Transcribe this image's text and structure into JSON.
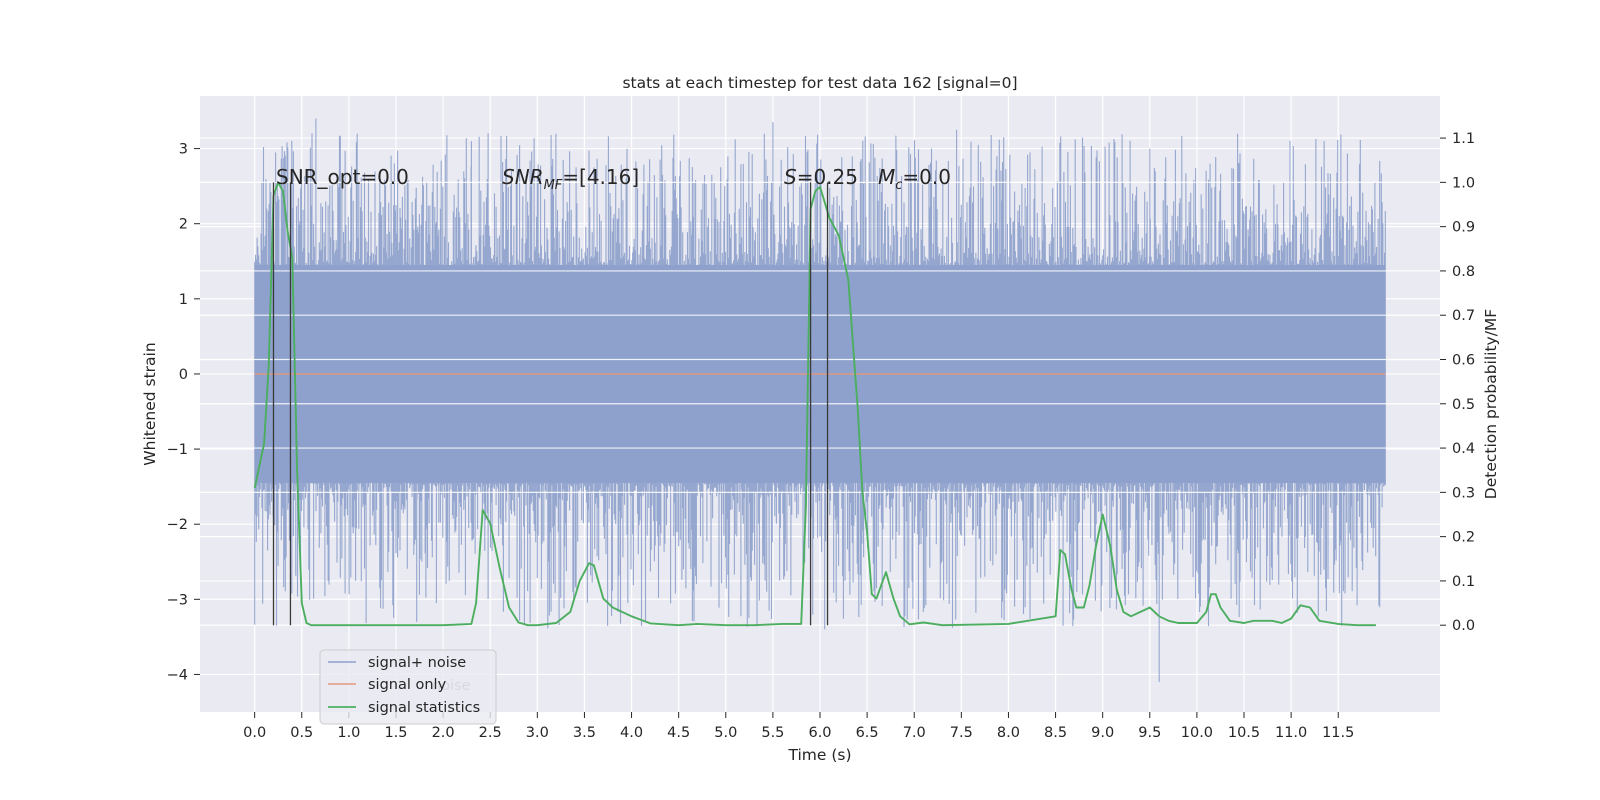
{
  "chart_data": {
    "type": "line",
    "title": "stats at each timestep for test data 162 [signal=0]",
    "xlabel": "Time (s)",
    "ylabel_left": "Whitened strain",
    "ylabel_right": "Detection probability/MF",
    "xlim": [
      -0.58,
      12.58
    ],
    "ylim_left": [
      -4.5,
      3.7
    ],
    "ylim_right": [
      -0.196,
      1.195
    ],
    "x_ticks": [
      "0.0",
      "0.5",
      "1.0",
      "1.5",
      "2.0",
      "2.5",
      "3.0",
      "3.5",
      "4.0",
      "4.5",
      "5.0",
      "5.5",
      "6.0",
      "6.5",
      "7.0",
      "7.5",
      "8.0",
      "8.5",
      "9.0",
      "9.5",
      "10.0",
      "10.5",
      "11.0",
      "11.5"
    ],
    "y_ticks_left": [
      "3",
      "2",
      "1",
      "0",
      "−1",
      "−2",
      "−3",
      "−4"
    ],
    "y_ticks_right": [
      "1.1",
      "1.0",
      "0.9",
      "0.8",
      "0.7",
      "0.6",
      "0.5",
      "0.4",
      "0.3",
      "0.2",
      "0.1",
      "0.0"
    ],
    "grid": true,
    "legend_position": "lower-left",
    "legend": [
      "signal+ noise",
      "signal only",
      "signal statistics"
    ],
    "legend_hidden_text": "noise",
    "annotations": {
      "snr_opt": "SNR_opt=0.0",
      "snr_mf_base": "SNR",
      "snr_mf_sub": "MF",
      "snr_mf_rest": "=[4.16]",
      "s_base": "S",
      "s_rest": "=0.25",
      "mc_base": "M",
      "mc_sub": "c",
      "mc_rest": "=0.0"
    },
    "colors": {
      "signal_noise": "#8da0cb",
      "signal_only": "#e4977c",
      "signal_statistics": "#4cae5f",
      "background": "#eaeaf2",
      "vlines": "#3a3a3a"
    },
    "series": [
      {
        "name": "signal+ noise",
        "x_range": [
          0.0,
          12.0
        ],
        "envelope_core": [
          -1.45,
          1.45
        ],
        "envelope_peak": [
          -3.6,
          3.4
        ],
        "spikes": [
          {
            "x": 0.65,
            "y": 3.4
          },
          {
            "x": 1.72,
            "y": -3.3
          },
          {
            "x": 2.3,
            "y": 3.1
          },
          {
            "x": 5.5,
            "y": 3.35
          },
          {
            "x": 6.05,
            "y": -3.4
          },
          {
            "x": 7.45,
            "y": 3.25
          },
          {
            "x": 7.95,
            "y": 3.15
          },
          {
            "x": 8.58,
            "y": -3.35
          },
          {
            "x": 9.6,
            "y": -4.1
          },
          {
            "x": 9.5,
            "y": 3.0
          },
          {
            "x": 11.35,
            "y": 3.1
          }
        ]
      },
      {
        "name": "signal only",
        "x": [
          0.0,
          12.0
        ],
        "y": [
          0.0,
          0.0
        ]
      },
      {
        "name": "signal statistics",
        "x": [
          0.0,
          0.1,
          0.15,
          0.2,
          0.25,
          0.3,
          0.35,
          0.4,
          0.45,
          0.5,
          0.55,
          0.6,
          1.0,
          2.0,
          2.3,
          2.35,
          2.42,
          2.5,
          2.6,
          2.7,
          2.8,
          2.9,
          3.0,
          3.2,
          3.35,
          3.45,
          3.55,
          3.6,
          3.7,
          3.8,
          4.0,
          4.2,
          4.5,
          4.7,
          5.0,
          5.3,
          5.6,
          5.8,
          5.85,
          5.9,
          5.95,
          6.0,
          6.1,
          6.2,
          6.3,
          6.4,
          6.45,
          6.5,
          6.55,
          6.6,
          6.65,
          6.7,
          6.78,
          6.85,
          6.95,
          7.1,
          7.3,
          8.0,
          8.5,
          8.55,
          8.6,
          8.67,
          8.72,
          8.8,
          8.86,
          8.93,
          9.0,
          9.08,
          9.15,
          9.22,
          9.3,
          9.4,
          9.5,
          9.6,
          9.7,
          9.8,
          9.9,
          10.0,
          10.1,
          10.15,
          10.2,
          10.25,
          10.35,
          10.5,
          10.6,
          10.8,
          10.9,
          11.0,
          11.1,
          11.2,
          11.3,
          11.5,
          11.7,
          11.9
        ],
        "y": [
          0.31,
          0.41,
          0.59,
          0.97,
          1.0,
          0.98,
          0.89,
          0.83,
          0.35,
          0.05,
          0.005,
          0.0,
          0.0,
          0.0,
          0.003,
          0.05,
          0.26,
          0.23,
          0.13,
          0.04,
          0.006,
          0.0,
          0.0,
          0.005,
          0.03,
          0.1,
          0.14,
          0.135,
          0.06,
          0.04,
          0.02,
          0.004,
          0.0,
          0.003,
          0.0,
          0.0,
          0.003,
          0.003,
          0.27,
          0.94,
          0.98,
          0.99,
          0.92,
          0.88,
          0.78,
          0.49,
          0.3,
          0.21,
          0.07,
          0.06,
          0.09,
          0.12,
          0.06,
          0.02,
          0.002,
          0.006,
          0.0,
          0.003,
          0.02,
          0.17,
          0.16,
          0.08,
          0.04,
          0.04,
          0.09,
          0.18,
          0.25,
          0.18,
          0.08,
          0.03,
          0.02,
          0.03,
          0.04,
          0.02,
          0.01,
          0.005,
          0.005,
          0.005,
          0.03,
          0.07,
          0.07,
          0.04,
          0.01,
          0.005,
          0.01,
          0.01,
          0.005,
          0.015,
          0.045,
          0.04,
          0.01,
          0.003,
          0.0,
          0.0
        ]
      }
    ],
    "vertical_lines": {
      "x": [
        0.2,
        0.38,
        5.9,
        6.08
      ],
      "y_from": 0.0,
      "y_to": 1.0
    }
  }
}
